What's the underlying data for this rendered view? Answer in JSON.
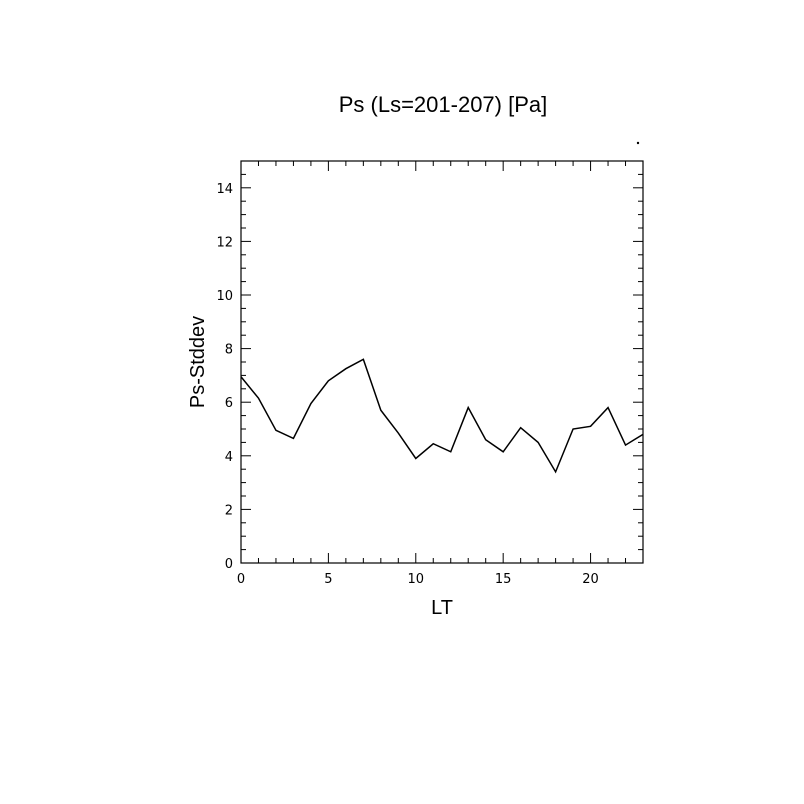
{
  "chart_data": {
    "type": "line",
    "title": "Ps (Ls=201-207) [Pa]",
    "xlabel": "LT",
    "ylabel": "Ps-Stddev",
    "xlim": [
      0,
      23
    ],
    "ylim": [
      0,
      15
    ],
    "xticks": [
      0,
      5,
      10,
      15,
      20
    ],
    "yticks": [
      0,
      2,
      4,
      6,
      8,
      10,
      12,
      14
    ],
    "grid": false,
    "series": [
      {
        "x": [
          0,
          1,
          2,
          3,
          4,
          5,
          6,
          7,
          8,
          9,
          10,
          11,
          12,
          13,
          14,
          15,
          16,
          17,
          18,
          19,
          20,
          21,
          22,
          23
        ],
        "y": [
          6.95,
          6.15,
          4.95,
          4.65,
          5.95,
          6.8,
          7.25,
          7.6,
          5.7,
          4.85,
          3.9,
          4.45,
          4.15,
          5.8,
          4.6,
          4.15,
          5.05,
          4.5,
          3.4,
          5.0,
          5.1,
          5.8,
          4.4,
          4.8
        ]
      }
    ]
  }
}
